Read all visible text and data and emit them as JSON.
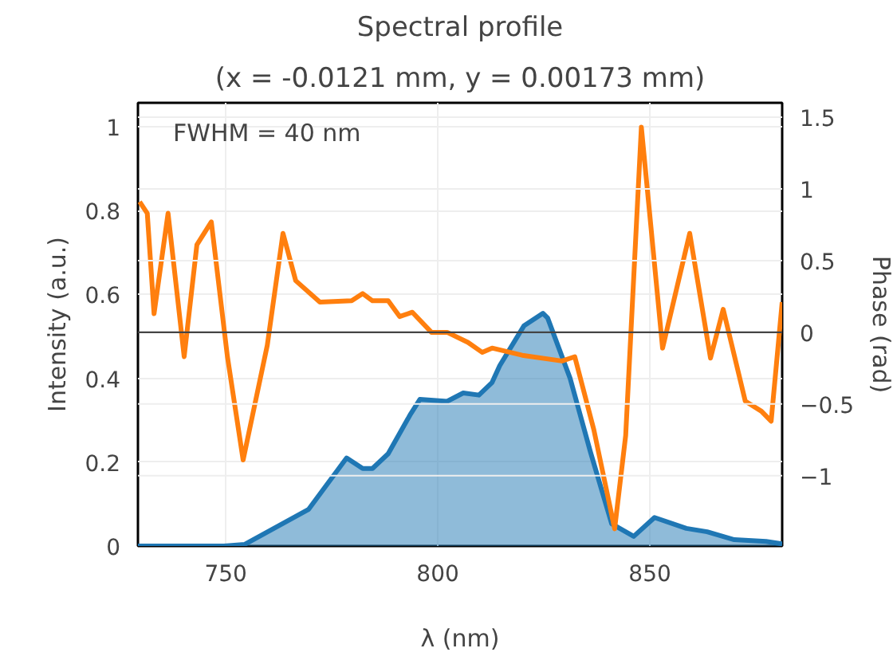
{
  "chart_data": {
    "type": "area",
    "title": "Spectral profile",
    "subtitle": "(x = -0.0121 mm, y = 0.00173 mm)",
    "xlabel": "λ (nm)",
    "ylabel": "Intensity (a.u.)",
    "y2label": "Phase (rad)",
    "annotations": [
      "FWHM = 40 nm"
    ],
    "xlim": [
      729.3,
      881.2
    ],
    "xticks": [
      750,
      800,
      850
    ],
    "ylim": [
      0,
      1.057
    ],
    "yticks": [
      0,
      0.2,
      0.4,
      0.6,
      0.8,
      1
    ],
    "y2lim": [
      -1.49,
      1.6
    ],
    "y2ticks": [
      -1,
      -0.5,
      0,
      0.5,
      1,
      1.5
    ],
    "grid": true,
    "ref_lines": [
      {
        "axis": "y2",
        "value": 0,
        "color": "#444444"
      }
    ],
    "series": [
      {
        "color": "#1f77b4",
        "x": [
          729.3,
          749.6,
          754.5,
          769.5,
          778.5,
          782.3,
          784.6,
          788.3,
          793.6,
          795.8,
          802.2,
          806,
          809.7,
          812.8,
          814.6,
          820.3,
          824.8,
          825.9,
          831.2,
          836,
          841,
          846.2,
          851.1,
          858.6,
          863.5,
          869.9,
          877.4,
          881.2
        ],
        "values": [
          0,
          0,
          0.004,
          0.087,
          0.21,
          0.185,
          0.185,
          0.22,
          0.315,
          0.35,
          0.345,
          0.365,
          0.36,
          0.39,
          0.43,
          0.525,
          0.555,
          0.544,
          0.4,
          0.224,
          0.053,
          0.023,
          0.068,
          0.042,
          0.034,
          0.015,
          0.011,
          0.005
        ]
      },
      {
        "type": "line",
        "axis": "y2",
        "color": "#ff7f0e",
        "x": [
          729.7,
          731.5,
          733.1,
          736.4,
          740.2,
          743.2,
          746.6,
          750.4,
          754.1,
          759.8,
          763.5,
          766.5,
          772.2,
          779.7,
          782.3,
          784.6,
          788.3,
          791,
          794,
          798.5,
          802.2,
          807.1,
          810.5,
          812.8,
          819.9,
          829.3,
          832.3,
          836.8,
          841.7,
          844.3,
          848,
          853,
          859.4,
          864.3,
          867.3,
          872.5,
          876.3,
          878.6,
          881.2
        ],
        "values": [
          0.91,
          0.83,
          0.13,
          0.83,
          -0.17,
          0.61,
          0.77,
          -0.17,
          -0.89,
          -0.09,
          0.69,
          0.36,
          0.21,
          0.22,
          0.27,
          0.22,
          0.22,
          0.11,
          0.14,
          0,
          0,
          -0.07,
          -0.14,
          -0.11,
          -0.16,
          -0.2,
          -0.17,
          -0.68,
          -1.37,
          -0.72,
          1.43,
          -0.11,
          0.69,
          -0.18,
          0.16,
          -0.48,
          -0.55,
          -0.62,
          0.21
        ]
      }
    ]
  }
}
